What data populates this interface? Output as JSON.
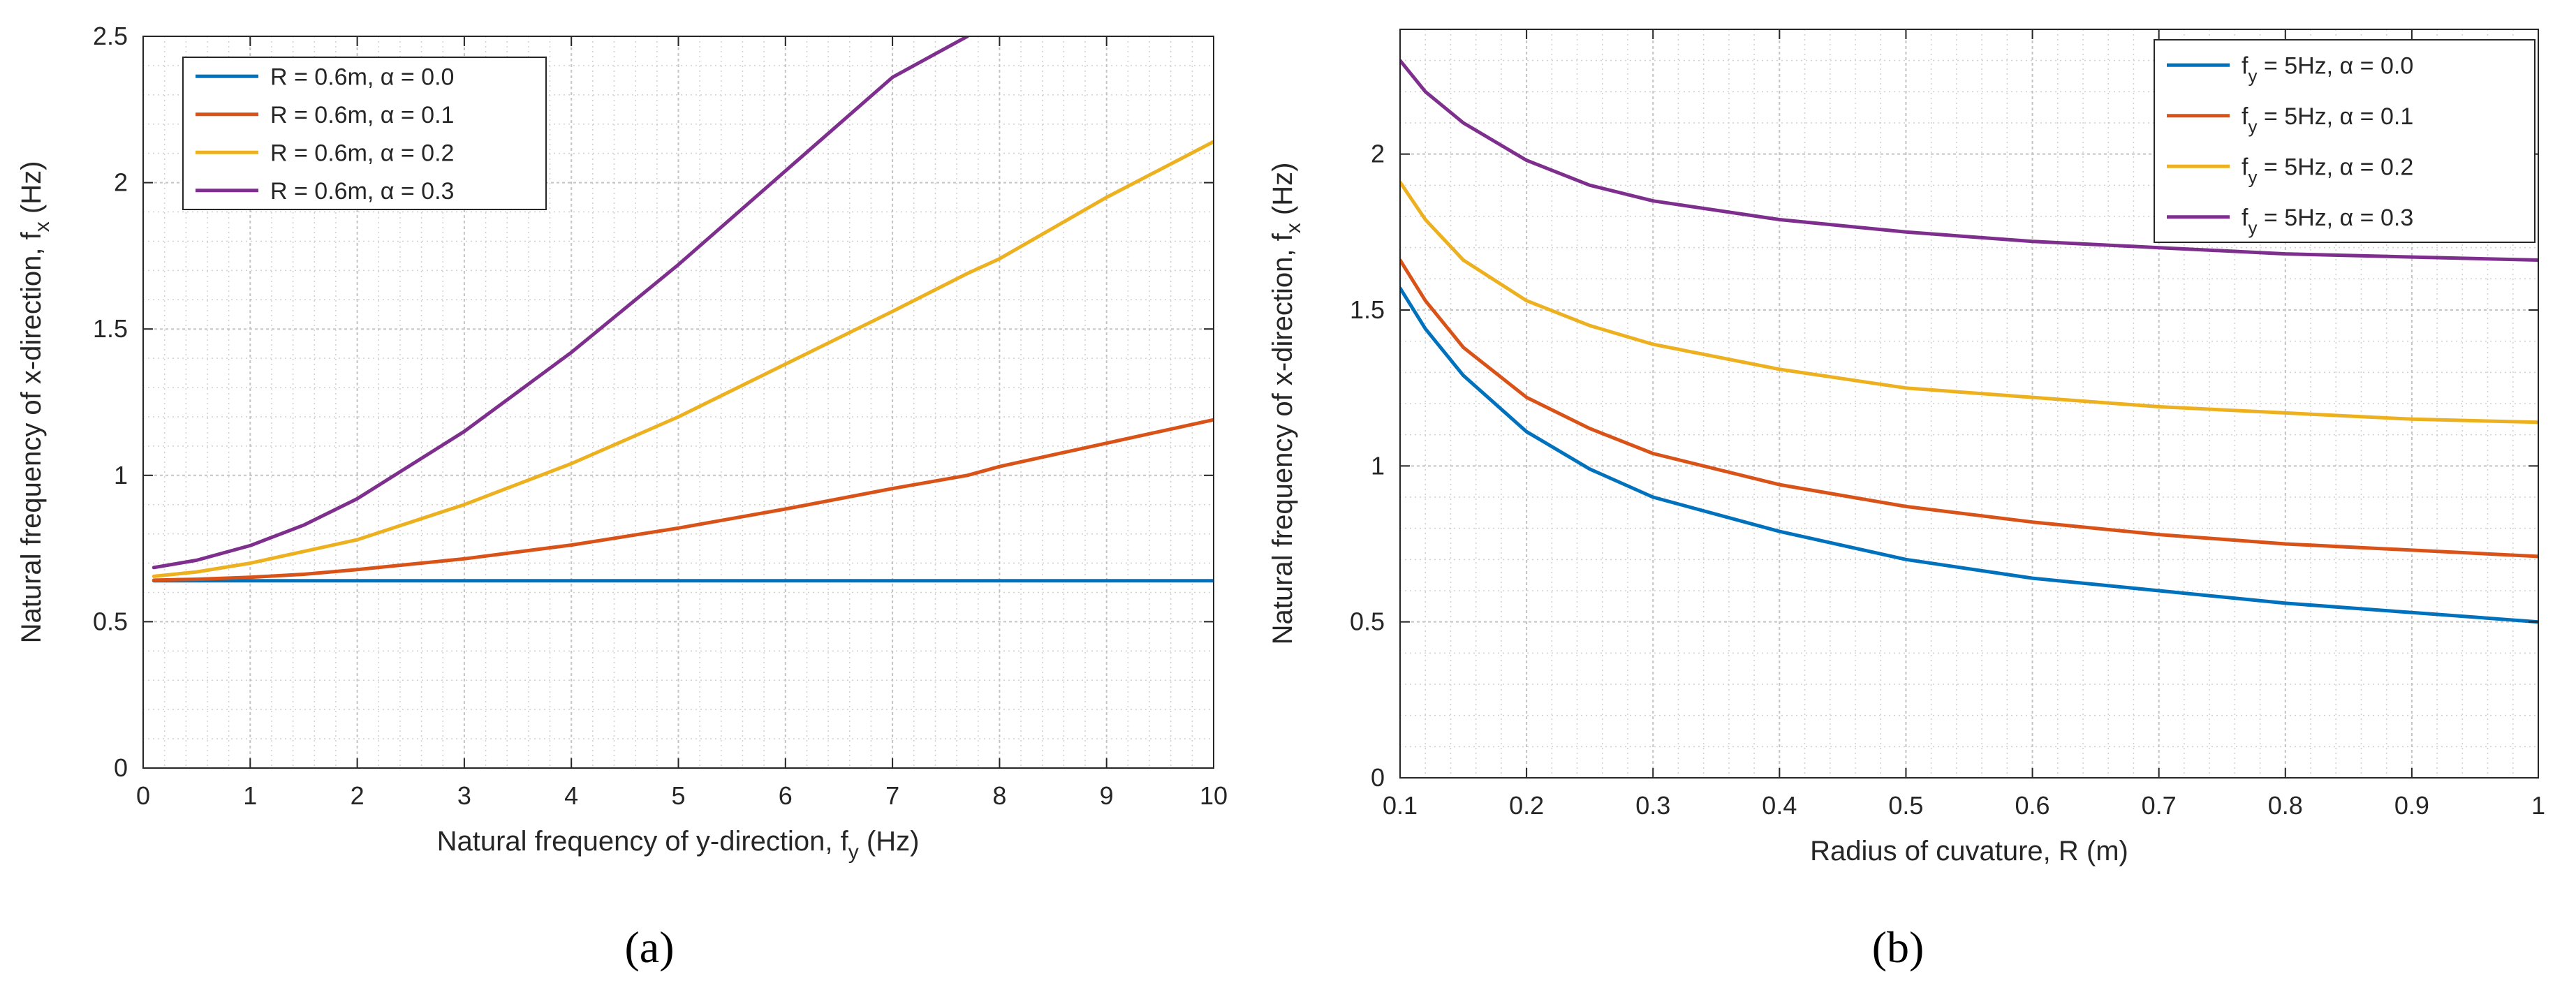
{
  "chart_data": [
    {
      "type": "line",
      "panel_label": "(a)",
      "xlabel": "Natural frequency of y-direction, f_y  (Hz)",
      "xlabel_main": "Natural frequency of y-direction, f",
      "xlabel_sub": "y",
      "xlabel_unit": "(Hz)",
      "ylabel": "Natural frequency of x-direction, f_x  (Hz)",
      "ylabel_main": "Natural frequency of x-direction, f",
      "ylabel_sub": "x",
      "ylabel_unit": "(Hz)",
      "xlim": [
        0,
        10
      ],
      "ylim": [
        0,
        2.5
      ],
      "xticks": [
        "0",
        "1",
        "2",
        "3",
        "4",
        "5",
        "6",
        "7",
        "8",
        "9",
        "10"
      ],
      "yticks": [
        "0",
        "0.5",
        "1",
        "1.5",
        "2",
        "2.5"
      ],
      "grid": true,
      "legend_position": "top-left",
      "x": [
        0.1,
        0.5,
        1,
        1.5,
        2,
        3,
        4,
        5,
        6,
        7,
        7.7,
        8,
        9,
        10
      ],
      "series": [
        {
          "name": "R = 0.6m, α = 0.0",
          "color": "#0072BD",
          "values": [
            0.64,
            0.64,
            0.64,
            0.64,
            0.64,
            0.64,
            0.64,
            0.64,
            0.64,
            0.64,
            0.64,
            0.64,
            0.64,
            0.64
          ]
        },
        {
          "name": "R = 0.6m, α = 0.1",
          "color": "#D95319",
          "values": [
            0.642,
            0.645,
            0.652,
            0.662,
            0.678,
            0.715,
            0.762,
            0.82,
            0.885,
            0.955,
            1.0,
            1.03,
            1.11,
            1.19
          ]
        },
        {
          "name": "R = 0.6m, α = 0.2",
          "color": "#EDB120",
          "values": [
            0.655,
            0.67,
            0.7,
            0.74,
            0.78,
            0.9,
            1.04,
            1.2,
            1.38,
            1.56,
            1.69,
            1.74,
            1.95,
            2.14
          ]
        },
        {
          "name": "R = 0.6m, α = 0.3",
          "color": "#7E2F8E",
          "values": [
            0.685,
            0.71,
            0.76,
            0.83,
            0.92,
            1.15,
            1.42,
            1.72,
            2.04,
            2.36,
            2.5,
            null,
            null,
            null
          ]
        }
      ]
    },
    {
      "type": "line",
      "panel_label": "(b)",
      "xlabel": "Radius of cuvature, R (m)",
      "xlabel_main": "Radius of cuvature, R (m)",
      "ylabel": "Natural frequency of x-direction, f_x  (Hz)",
      "ylabel_main": "Natural frequency of x-direction, f",
      "ylabel_sub": "x",
      "ylabel_unit": "(Hz)",
      "xlim": [
        0.1,
        1
      ],
      "ylim": [
        0,
        2.4
      ],
      "xticks": [
        "0.1",
        "0.2",
        "0.3",
        "0.4",
        "0.5",
        "0.6",
        "0.7",
        "0.8",
        "0.9",
        "1"
      ],
      "yticks": [
        "0",
        "0.5",
        "1",
        "1.5",
        "2"
      ],
      "grid": true,
      "legend_position": "top-right",
      "x": [
        0.1,
        0.12,
        0.15,
        0.2,
        0.25,
        0.3,
        0.4,
        0.5,
        0.6,
        0.7,
        0.8,
        0.9,
        1.0
      ],
      "series": [
        {
          "name": "f_y = 5Hz, α = 0.0",
          "name_main": "f",
          "name_sub": "y",
          "name_rest": " = 5Hz, α = 0.0",
          "color": "#0072BD",
          "values": [
            1.57,
            1.44,
            1.29,
            1.11,
            0.99,
            0.9,
            0.79,
            0.7,
            0.64,
            0.6,
            0.56,
            0.53,
            0.5
          ]
        },
        {
          "name": "f_y = 5Hz, α = 0.1",
          "name_main": "f",
          "name_sub": "y",
          "name_rest": " = 5Hz, α = 0.1",
          "color": "#D95319",
          "values": [
            1.66,
            1.53,
            1.38,
            1.22,
            1.12,
            1.04,
            0.94,
            0.87,
            0.82,
            0.78,
            0.75,
            0.73,
            0.71
          ]
        },
        {
          "name": "f_y = 5Hz, α = 0.2",
          "name_main": "f",
          "name_sub": "y",
          "name_rest": " = 5Hz, α = 0.2",
          "color": "#EDB120",
          "values": [
            1.91,
            1.79,
            1.66,
            1.53,
            1.45,
            1.39,
            1.31,
            1.25,
            1.22,
            1.19,
            1.17,
            1.15,
            1.14
          ]
        },
        {
          "name": "f_y = 5Hz, α = 0.3",
          "name_main": "f",
          "name_sub": "y",
          "name_rest": " = 5Hz, α = 0.3",
          "color": "#7E2F8E",
          "values": [
            2.3,
            2.2,
            2.1,
            1.98,
            1.9,
            1.85,
            1.79,
            1.75,
            1.72,
            1.7,
            1.68,
            1.67,
            1.66
          ]
        }
      ]
    }
  ]
}
